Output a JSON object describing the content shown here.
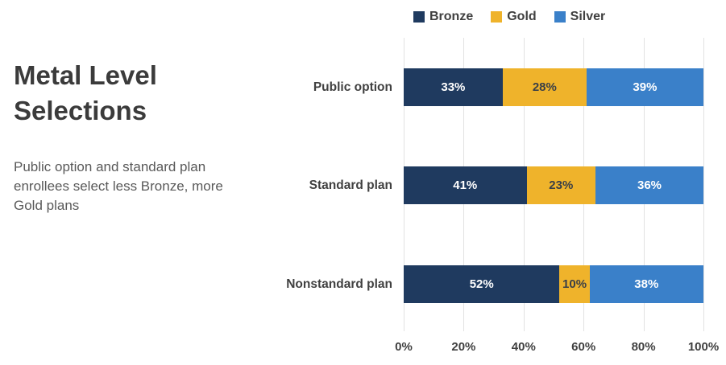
{
  "title": "Metal Level Selections",
  "subtitle": "Public option and standard plan enrollees select less Bronze, more Gold plans",
  "legend": [
    {
      "label": "Bronze",
      "color": "#1F3A5F"
    },
    {
      "label": "Gold",
      "color": "#EFB32B"
    },
    {
      "label": "Silver",
      "color": "#3A80C9"
    }
  ],
  "chart_data": {
    "type": "bar",
    "orientation": "horizontal",
    "stacked": true,
    "categories": [
      "Public option",
      "Standard plan",
      "Nonstandard plan"
    ],
    "series": [
      {
        "name": "Bronze",
        "color": "#1F3A5F",
        "label_color": "#FFFFFF",
        "values": [
          33,
          41,
          52
        ]
      },
      {
        "name": "Gold",
        "color": "#EFB32B",
        "label_color": "#3A3F47",
        "values": [
          28,
          23,
          10
        ]
      },
      {
        "name": "Silver",
        "color": "#3A80C9",
        "label_color": "#FFFFFF",
        "values": [
          39,
          36,
          38
        ]
      }
    ],
    "x_ticks": [
      "0%",
      "20%",
      "40%",
      "60%",
      "80%",
      "100%"
    ],
    "xlim": [
      0,
      100
    ],
    "grid": true,
    "legend_position": "top",
    "data_label_format": "percent"
  },
  "colors": {
    "title_text": "#3B3B3B",
    "subtitle_text": "#595959",
    "axis_text": "#404040",
    "gridline": "#E2E2E2",
    "background": "#FFFFFF"
  }
}
